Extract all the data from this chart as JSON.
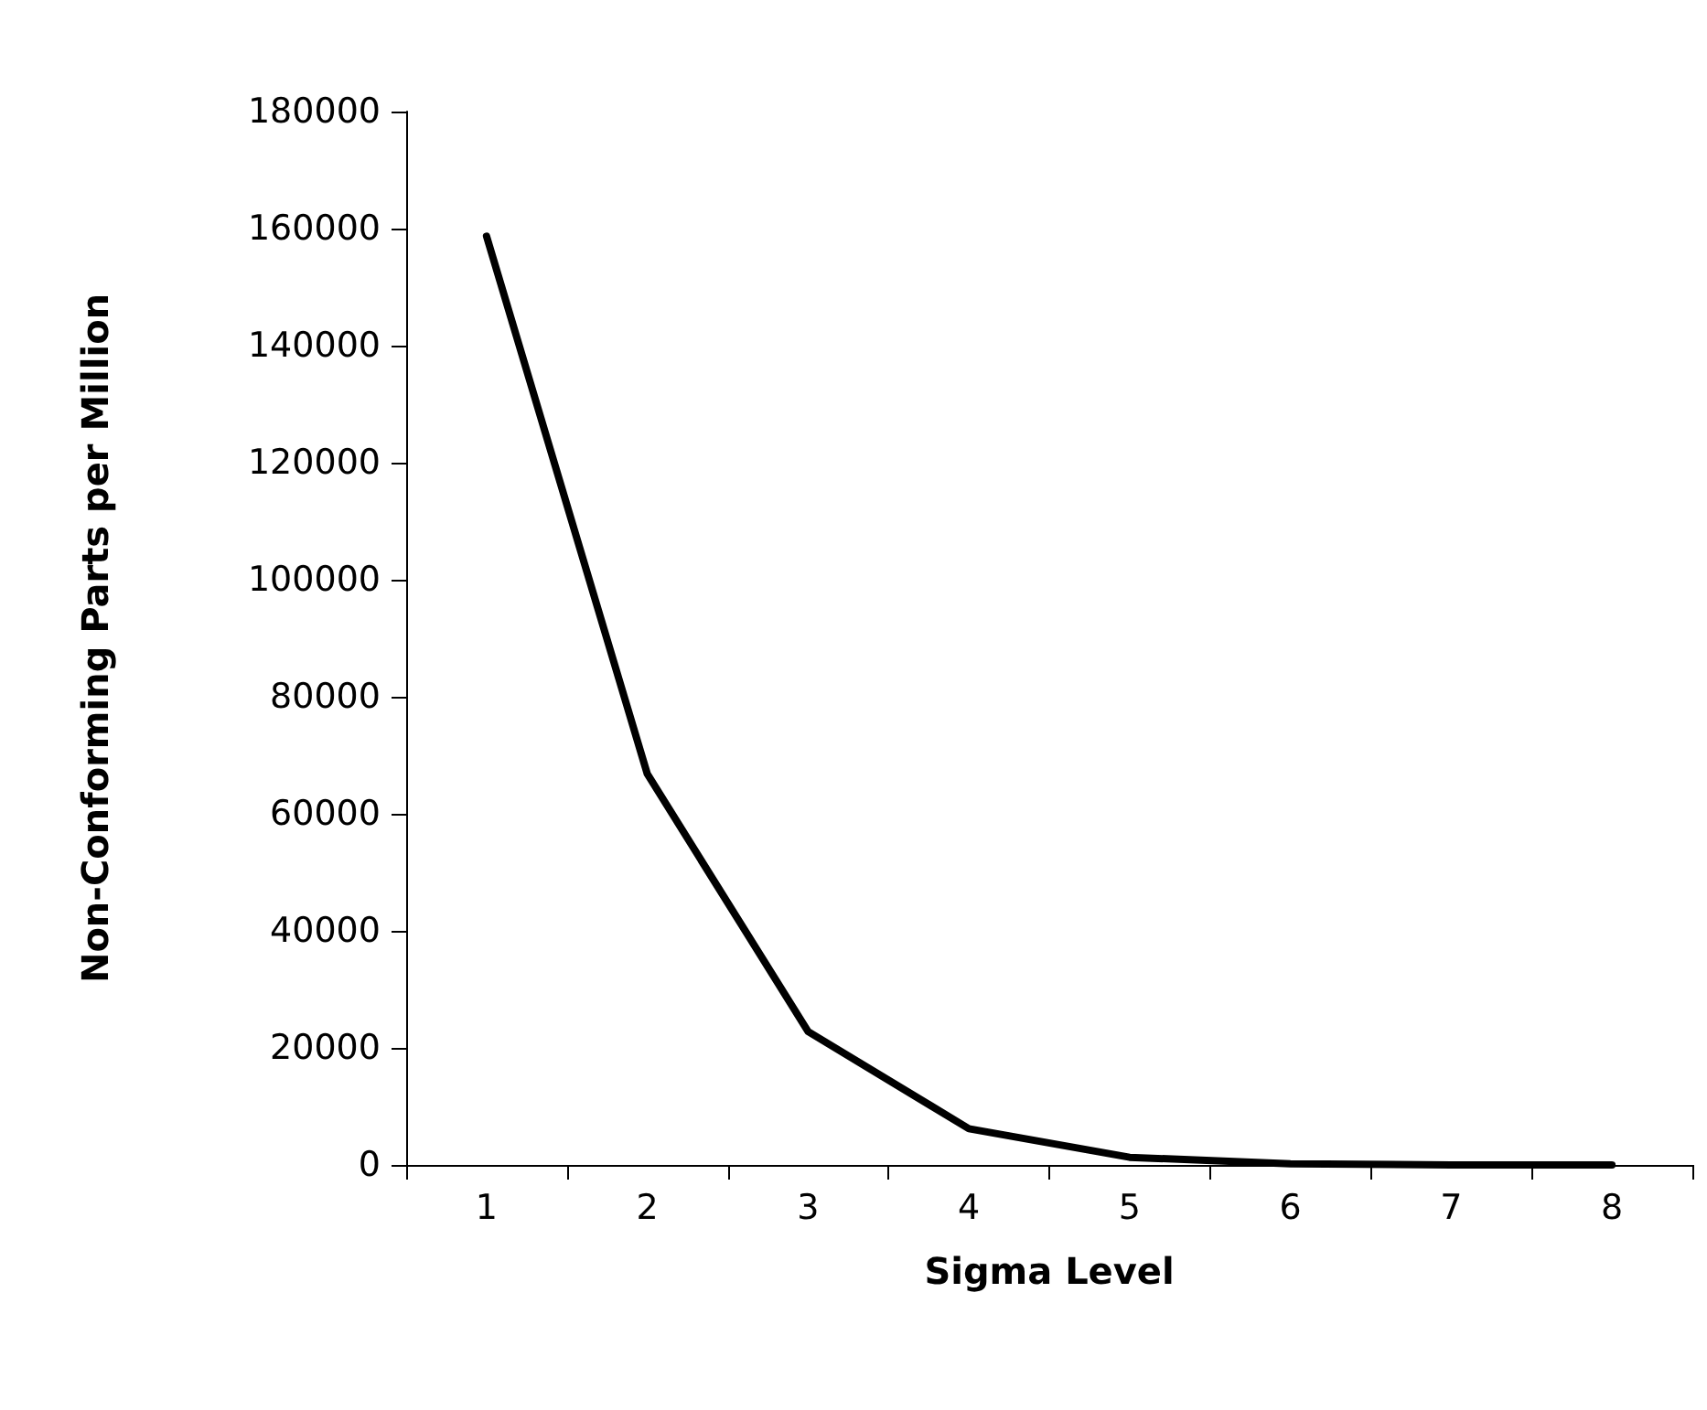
{
  "chart_data": {
    "type": "line",
    "xlabel": "Sigma Level",
    "ylabel": "Non-Conforming Parts per Million",
    "categories": [
      "1",
      "2",
      "3",
      "4",
      "5",
      "6",
      "7",
      "8"
    ],
    "series": [
      {
        "color": "#000000",
        "values": [
          158700,
          66800,
          22800,
          6200,
          1300,
          200,
          0,
          0
        ]
      }
    ],
    "ylim": [
      0,
      180000
    ],
    "yticks": [
      0,
      20000,
      40000,
      60000,
      80000,
      100000,
      120000,
      140000,
      160000,
      180000
    ],
    "grid": false,
    "marker": "none",
    "line_style": "solid"
  }
}
